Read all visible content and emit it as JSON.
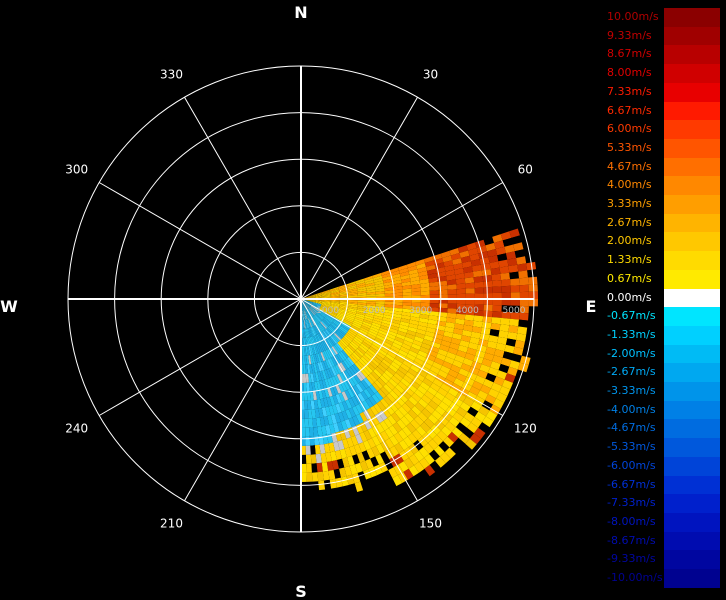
{
  "display": {
    "cardinal_labels": {
      "north": "N",
      "east": "E",
      "south": "S",
      "west": "W"
    },
    "bearing_labels": [
      {
        "deg": 30,
        "text": "30"
      },
      {
        "deg": 60,
        "text": "60"
      },
      {
        "deg": 120,
        "text": "120"
      },
      {
        "deg": 150,
        "text": "150"
      },
      {
        "deg": 210,
        "text": "210"
      },
      {
        "deg": 240,
        "text": "240"
      },
      {
        "deg": 300,
        "text": "300"
      },
      {
        "deg": 330,
        "text": "330"
      }
    ],
    "range_labels": [
      "1000",
      "2000",
      "3000",
      "4000",
      "5000"
    ],
    "ring_count": 5,
    "spoke_interval_deg": 30,
    "grid_color": "#ffffff"
  },
  "scan": {
    "sector_start_deg": 72,
    "sector_end_deg": 180
  },
  "legend": [
    {
      "label": "10.00m/s",
      "color": "#8b0000",
      "text_color": "#b00000"
    },
    {
      "label": "9.33m/s",
      "color": "#a00000",
      "text_color": "#c00000"
    },
    {
      "label": "8.67m/s",
      "color": "#b80000",
      "text_color": "#d00000"
    },
    {
      "label": "8.00m/s",
      "color": "#d00000",
      "text_color": "#e00000"
    },
    {
      "label": "7.33m/s",
      "color": "#e80000",
      "text_color": "#ff1a00"
    },
    {
      "label": "6.67m/s",
      "color": "#ff1a00",
      "text_color": "#ff2a00"
    },
    {
      "label": "6.00m/s",
      "color": "#ff3a00",
      "text_color": "#ff3a00"
    },
    {
      "label": "5.33m/s",
      "color": "#ff5500",
      "text_color": "#ff5500"
    },
    {
      "label": "4.67m/s",
      "color": "#ff6f00",
      "text_color": "#ff7000"
    },
    {
      "label": "4.00m/s",
      "color": "#ff8800",
      "text_color": "#ff8800"
    },
    {
      "label": "3.33m/s",
      "color": "#ff9e00",
      "text_color": "#ffa000"
    },
    {
      "label": "2.67m/s",
      "color": "#ffb400",
      "text_color": "#ffb400"
    },
    {
      "label": "2.00m/s",
      "color": "#ffc800",
      "text_color": "#ffc800"
    },
    {
      "label": "1.33m/s",
      "color": "#ffdb00",
      "text_color": "#ffdb00"
    },
    {
      "label": "0.67m/s",
      "color": "#ffea00",
      "text_color": "#ffea00"
    },
    {
      "label": "0.00m/s",
      "color": "#ffffff",
      "text_color": "#ffffff"
    },
    {
      "label": "-0.67m/s",
      "color": "#00e5ff",
      "text_color": "#00e5ff"
    },
    {
      "label": "-1.33m/s",
      "color": "#00d0ff",
      "text_color": "#00d0ff"
    },
    {
      "label": "-2.00m/s",
      "color": "#00bbf5",
      "text_color": "#00c0ff"
    },
    {
      "label": "-2.67m/s",
      "color": "#00a8f0",
      "text_color": "#00aaf5"
    },
    {
      "label": "-3.33m/s",
      "color": "#0094ea",
      "text_color": "#0096ee"
    },
    {
      "label": "-4.00m/s",
      "color": "#0080e6",
      "text_color": "#0080e6"
    },
    {
      "label": "-4.67m/s",
      "color": "#006ce0",
      "text_color": "#006ce0"
    },
    {
      "label": "-5.33m/s",
      "color": "#0058dc",
      "text_color": "#0058dc"
    },
    {
      "label": "-6.00m/s",
      "color": "#0044d8",
      "text_color": "#0044d8"
    },
    {
      "label": "-6.67m/s",
      "color": "#0030d4",
      "text_color": "#0030d4"
    },
    {
      "label": "-7.33m/s",
      "color": "#0020cc",
      "text_color": "#0020cc"
    },
    {
      "label": "-8.00m/s",
      "color": "#0014bf",
      "text_color": "#0014bf"
    },
    {
      "label": "-8.67m/s",
      "color": "#000cb0",
      "text_color": "#000cb0"
    },
    {
      "label": "-9.33m/s",
      "color": "#0006a0",
      "text_color": "#0006a0"
    },
    {
      "label": "-10.00m/s",
      "color": "#000290",
      "text_color": "#000290"
    }
  ]
}
